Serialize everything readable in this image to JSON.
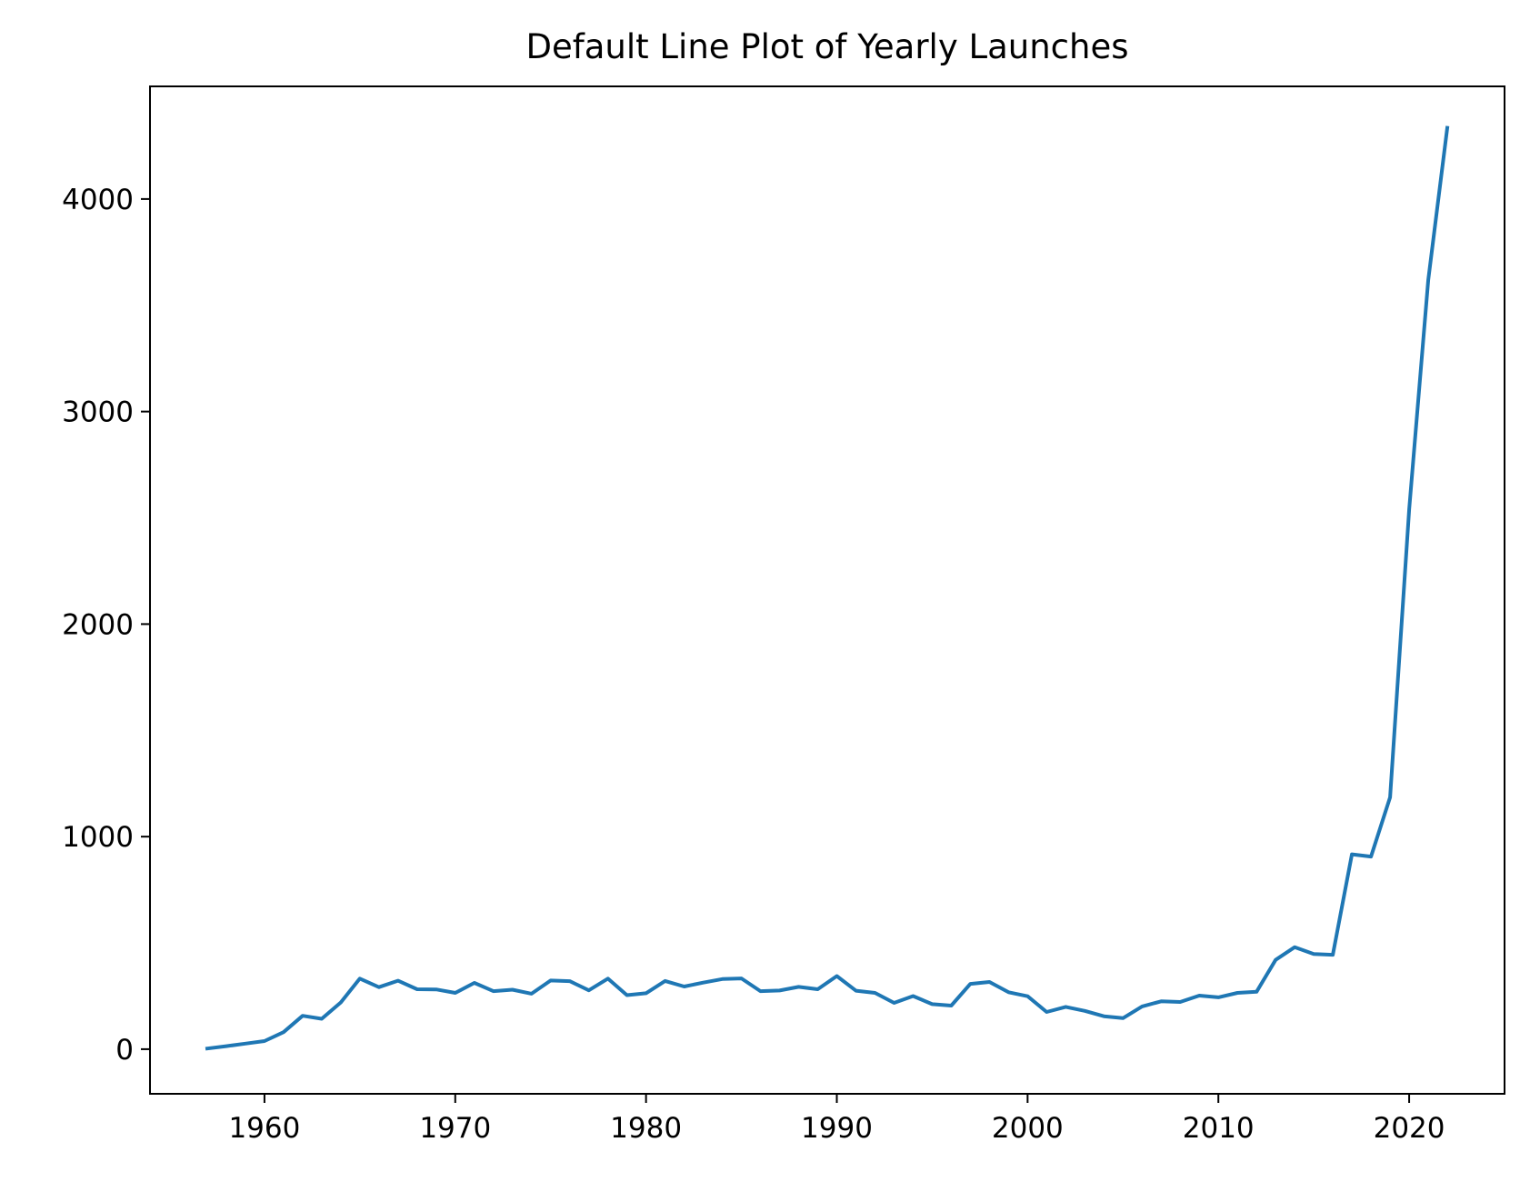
{
  "chart_data": {
    "type": "line",
    "title": "Default Line Plot of Yearly Launches",
    "xlabel": "",
    "ylabel": "",
    "xlim": [
      1954,
      2025
    ],
    "ylim": [
      -210,
      4530
    ],
    "xticks": [
      1960,
      1970,
      1980,
      1990,
      2000,
      2010,
      2020
    ],
    "yticks": [
      0,
      1000,
      2000,
      3000,
      4000
    ],
    "grid": false,
    "line_color": "#1f77b4",
    "series": [
      {
        "x": [
          1957,
          1958,
          1959,
          1960,
          1961,
          1962,
          1963,
          1964,
          1965,
          1966,
          1967,
          1968,
          1969,
          1970,
          1971,
          1972,
          1973,
          1974,
          1975,
          1976,
          1977,
          1978,
          1979,
          1980,
          1981,
          1982,
          1983,
          1984,
          1985,
          1986,
          1987,
          1988,
          1989,
          1990,
          1991,
          1992,
          1993,
          1994,
          1995,
          1996,
          1997,
          1998,
          1999,
          2000,
          2001,
          2002,
          2003,
          2004,
          2005,
          2006,
          2007,
          2008,
          2009,
          2010,
          2011,
          2012,
          2013,
          2014,
          2015,
          2016,
          2017,
          2018,
          2019,
          2020,
          2021,
          2022
        ],
        "values": [
          3,
          14,
          26,
          38,
          80,
          157,
          143,
          220,
          332,
          292,
          322,
          282,
          281,
          265,
          312,
          273,
          280,
          261,
          323,
          320,
          277,
          332,
          254,
          263,
          321,
          295,
          313,
          330,
          333,
          273,
          276,
          293,
          282,
          344,
          275,
          265,
          218,
          250,
          212,
          205,
          307,
          316,
          268,
          249,
          175,
          199,
          180,
          155,
          146,
          201,
          225,
          222,
          252,
          244,
          265,
          270,
          420,
          480,
          448,
          444,
          917,
          906,
          1185,
          2540,
          3620,
          4335
        ]
      }
    ]
  }
}
